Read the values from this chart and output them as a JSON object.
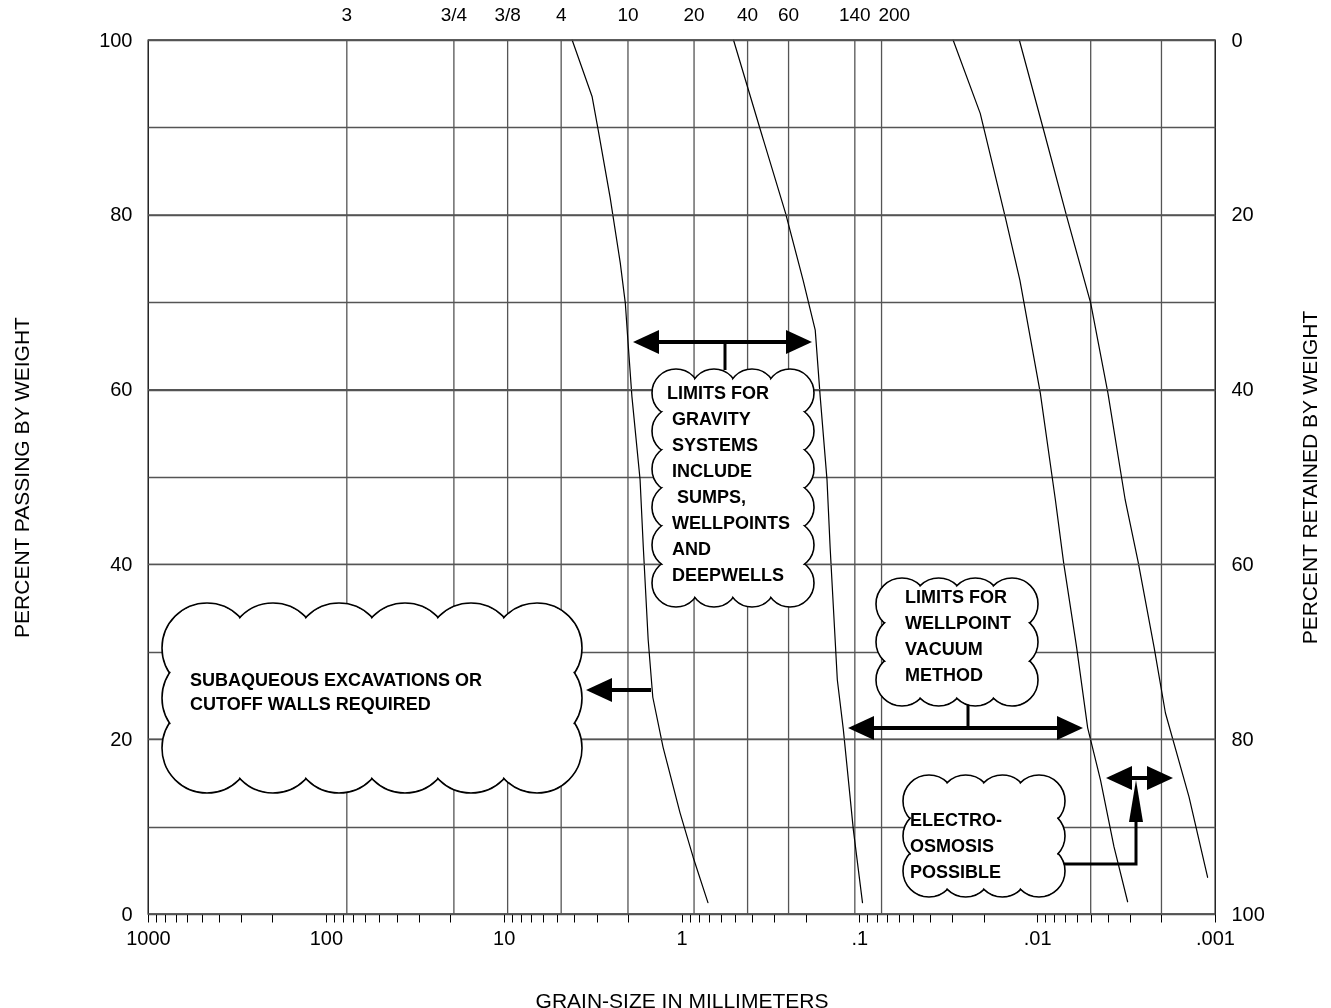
{
  "chart_data": {
    "type": "line",
    "xlabel": "GRAIN-SIZE IN MILLIMETERS",
    "ylabel": "PERCENT PASSING BY WEIGHT",
    "y2label": "PERCENT RETAINED BY WEIGHT",
    "log": "x",
    "grid": "y",
    "xlim": [
      1000,
      0.001
    ],
    "xticks": [
      1000,
      {
        "value": 900,
        "label": null
      },
      {
        "value": 800,
        "label": null
      },
      {
        "value": 700,
        "label": null
      },
      {
        "value": 600,
        "label": null
      },
      {
        "value": 500,
        "label": null
      },
      {
        "value": 400,
        "label": null
      },
      {
        "value": 300,
        "label": null
      },
      {
        "value": 200,
        "label": null
      },
      100,
      {
        "value": 90,
        "label": null
      },
      {
        "value": 80,
        "label": null
      },
      {
        "value": 70,
        "label": null
      },
      {
        "value": 60,
        "label": null
      },
      {
        "value": 50,
        "label": null
      },
      {
        "value": 40,
        "label": null
      },
      {
        "value": 30,
        "label": null
      },
      {
        "value": 20,
        "label": null
      },
      10,
      {
        "value": 9,
        "label": null
      },
      {
        "value": 8,
        "label": null
      },
      {
        "value": 7,
        "label": null
      },
      {
        "value": 6,
        "label": null
      },
      {
        "value": 5,
        "label": null
      },
      {
        "value": 4,
        "label": null
      },
      {
        "value": 3,
        "label": null
      },
      {
        "value": 2,
        "label": null
      },
      1,
      {
        "value": 0.9,
        "label": null
      },
      {
        "value": 0.8,
        "label": null
      },
      {
        "value": 0.7,
        "label": null
      },
      {
        "value": 0.6,
        "label": null
      },
      {
        "value": 0.5,
        "label": null
      },
      {
        "value": 0.4,
        "label": null
      },
      {
        "value": 0.3,
        "label": null
      },
      {
        "value": 0.2,
        "label": null
      },
      {
        "value": 0.1,
        "label": ".1"
      },
      {
        "value": 0.09,
        "label": null
      },
      {
        "value": 0.08,
        "label": null
      },
      {
        "value": 0.07,
        "label": null
      },
      {
        "value": 0.06,
        "label": null
      },
      {
        "value": 0.05,
        "label": null
      },
      {
        "value": 0.04,
        "label": null
      },
      {
        "value": 0.03,
        "label": null
      },
      {
        "value": 0.02,
        "label": null
      },
      {
        "value": 0.01,
        "label": ".01"
      },
      {
        "value": 0.009,
        "label": null
      },
      {
        "value": 0.008,
        "label": null
      },
      {
        "value": 0.007,
        "label": null
      },
      {
        "value": 0.006,
        "label": null
      },
      {
        "value": 0.005,
        "label": null
      },
      {
        "value": 0.004,
        "label": null
      },
      {
        "value": 0.003,
        "label": null
      },
      {
        "value": 0.002,
        "label": null
      },
      {
        "value": 0.001,
        "label": ".001"
      }
    ],
    "ref_lines": [
      {
        "axis": "x",
        "value": 76.2,
        "color": "#555555"
      },
      {
        "axis": "x",
        "value": 19.05,
        "color": "#555555"
      },
      {
        "axis": "x",
        "value": 9.5,
        "color": "#555555"
      },
      {
        "axis": "x",
        "value": 4.75,
        "color": "#555555"
      },
      {
        "axis": "x",
        "value": 2.0,
        "color": "#555555"
      },
      {
        "axis": "x",
        "value": 0.85,
        "color": "#555555"
      },
      {
        "axis": "x",
        "value": 0.425,
        "color": "#555555"
      },
      {
        "axis": "x",
        "value": 0.25,
        "color": "#555555"
      },
      {
        "axis": "x",
        "value": 0.106,
        "color": "#555555"
      },
      {
        "axis": "x",
        "value": 0.075,
        "color": "#555555"
      },
      {
        "axis": "x",
        "value": 0.005,
        "color": "#555555"
      },
      {
        "axis": "x",
        "value": 0.002,
        "color": "#555555"
      }
    ],
    "ylim": [
      0,
      100
    ],
    "yticks": [
      0,
      {
        "value": 10,
        "label": null
      },
      20,
      {
        "value": 30,
        "label": null
      },
      40,
      {
        "value": 50,
        "label": null
      },
      60,
      {
        "value": 70,
        "label": null
      },
      80,
      {
        "value": 90,
        "label": null
      },
      100
    ],
    "y2lim": [
      100,
      0
    ],
    "y2ticks": [
      0,
      20,
      40,
      60,
      80,
      100
    ],
    "series": [
      {
        "color": "#000000",
        "x": [
          4.12,
          3.18,
          2.94,
          2.52,
          2.21,
          2.07,
          2.0,
          1.9,
          1.71,
          1.64,
          1.54,
          1.45,
          1.27,
          1.02,
          0.86,
          0.71
        ],
        "values": [
          100,
          93.5,
          89.7,
          82.0,
          74.5,
          69.9,
          65.5,
          59.2,
          49.7,
          42.0,
          31.4,
          24.8,
          19.1,
          11.6,
          6.5,
          1.3
        ]
      },
      {
        "color": "#000000",
        "x": [
          0.51,
          0.36,
          0.26,
          0.207,
          0.177,
          0.166,
          0.152,
          0.146,
          0.133,
          0.123,
          0.108,
          0.096
        ],
        "values": [
          100,
          89.7,
          80.2,
          72.5,
          66.8,
          59.2,
          49.7,
          42.0,
          26.8,
          21.1,
          9.6,
          1.3
        ]
      },
      {
        "color": "#000000",
        "x": [
          0.0297,
          0.0209,
          0.0151,
          0.0125,
          0.0096,
          0.0079,
          0.0071,
          0.006,
          0.0052,
          0.0044,
          0.0037,
          0.0031
        ],
        "values": [
          100,
          91.6,
          79.7,
          72.5,
          59.6,
          47.4,
          40.2,
          30.5,
          21.3,
          15.3,
          7.7,
          1.4
        ]
      },
      {
        "color": "#000000",
        "x": [
          0.0126,
          0.0092,
          0.0068,
          0.005,
          0.004,
          0.0032,
          0.0027,
          0.0022,
          0.0019,
          0.0014,
          0.0011
        ],
        "values": [
          100,
          89.7,
          79.7,
          69.9,
          59.6,
          47.4,
          40.2,
          30.5,
          23.0,
          13.4,
          4.2
        ]
      }
    ],
    "annotations": [
      "3",
      "3/4",
      "3/8",
      "4",
      "10",
      "20",
      "40",
      "60",
      "140",
      "200",
      "SUBAQUEOUS EXCAVATIONS OR\nCUTOFF WALLS REQUIRED",
      "LIMITS FOR\n GRAVITY\n SYSTEMS\n INCLUDE\n  SUMPS,\n WELLPOINTS\n AND\n DEEPWELLS",
      "LIMITS FOR\nWELLPOINT\nVACUUM\nMETHOD",
      "ELECTRO-\nOSMOSIS\nPOSSIBLE"
    ]
  }
}
